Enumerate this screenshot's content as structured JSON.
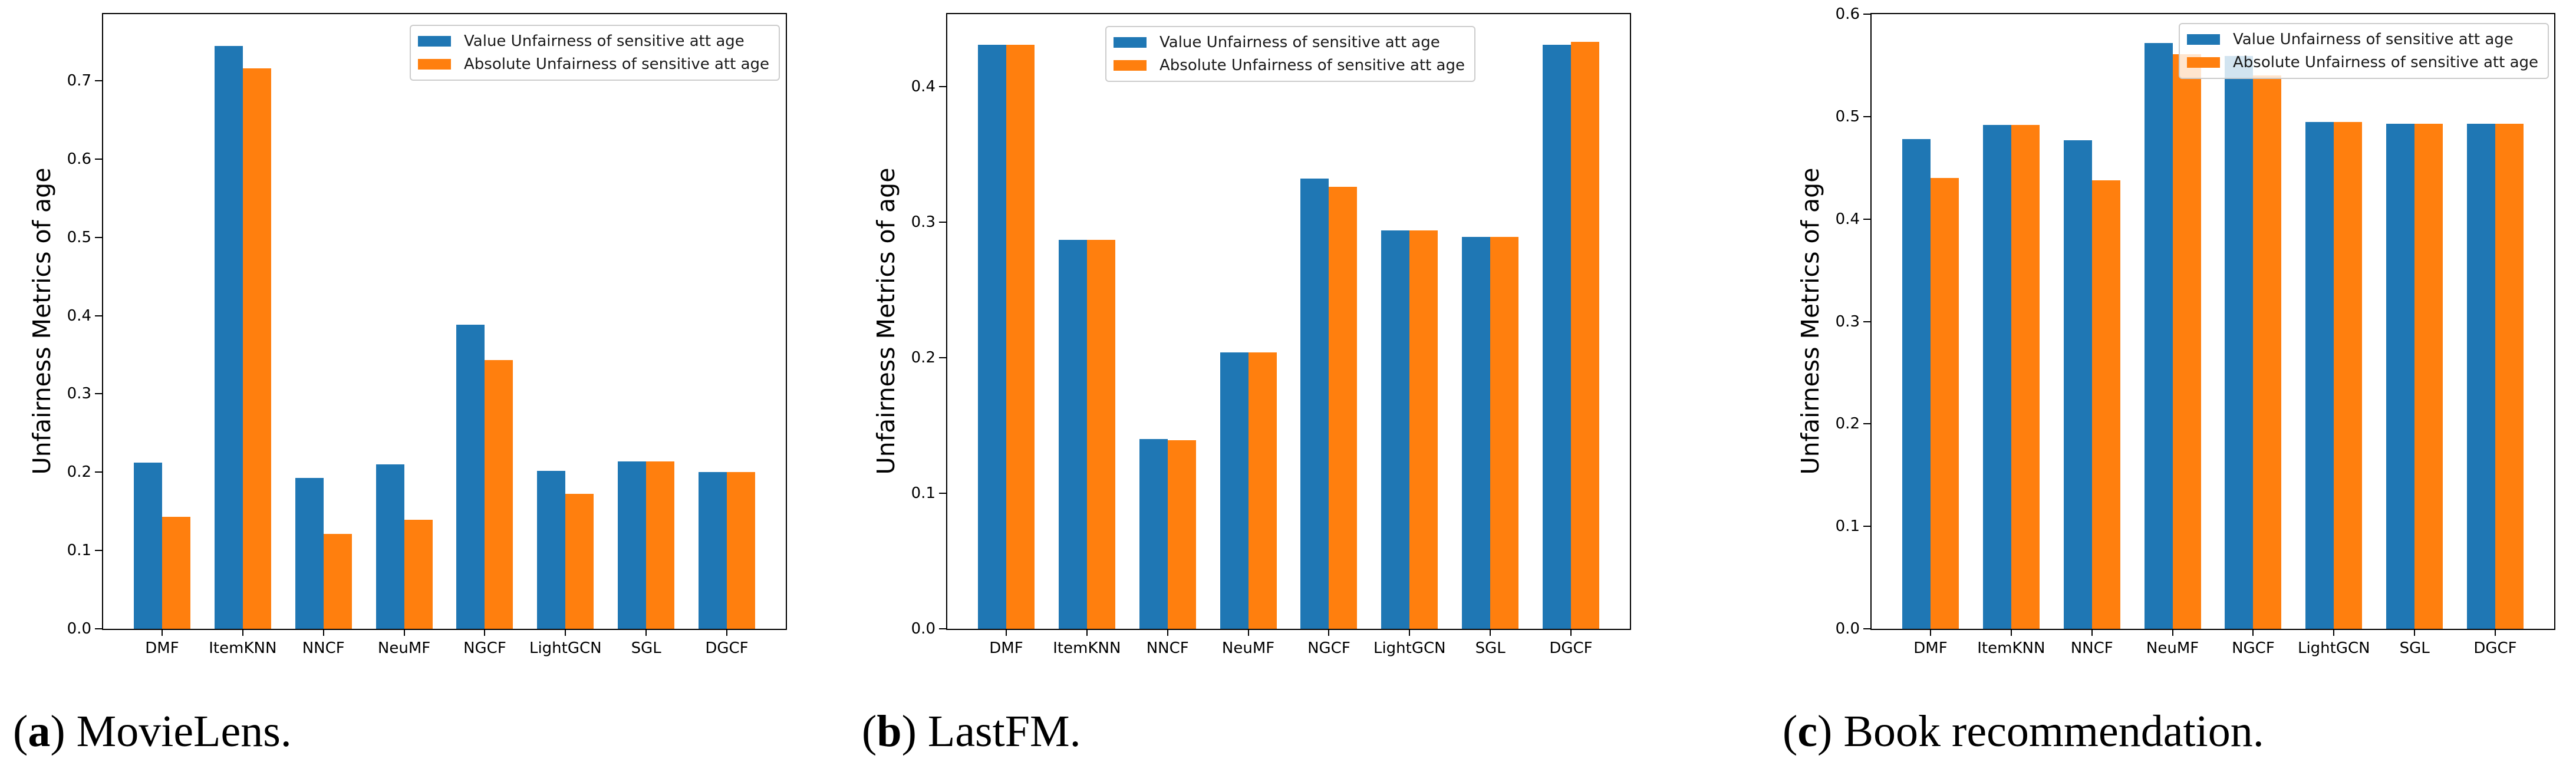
{
  "figure": {
    "background": "#ffffff",
    "axis_color": "#000000",
    "series_colors": {
      "value": "#1f77b4",
      "absolute": "#ff7f0e"
    }
  },
  "chart_data": [
    {
      "type": "bar",
      "caption": {
        "prefix": "(",
        "letter": "a",
        "suffix": ") MovieLens."
      },
      "ylabel": "Unfairness Metrics of age",
      "xlabel": "",
      "categories": [
        "DMF",
        "ItemKNN",
        "NNCF",
        "NeuMF",
        "NGCF",
        "LightGCN",
        "SGL",
        "DGCF"
      ],
      "series": [
        {
          "name": "Value Unfairness of sensitive att age",
          "color": "#1f77b4",
          "values": [
            0.212,
            0.744,
            0.193,
            0.21,
            0.388,
            0.202,
            0.214,
            0.2
          ]
        },
        {
          "name": "Absolute Unfairness of sensitive att age",
          "color": "#ff7f0e",
          "values": [
            0.143,
            0.716,
            0.121,
            0.139,
            0.343,
            0.172,
            0.214,
            0.2
          ]
        }
      ],
      "ylim": [
        0,
        0.785
      ],
      "yticks": [
        0.0,
        0.1,
        0.2,
        0.3,
        0.4,
        0.5,
        0.6,
        0.7
      ],
      "grid": false,
      "legend_position": "upper right"
    },
    {
      "type": "bar",
      "caption": {
        "prefix": "(",
        "letter": "b",
        "suffix": ") LastFM."
      },
      "ylabel": "Unfairness Metrics of age",
      "xlabel": "",
      "categories": [
        "DMF",
        "ItemKNN",
        "NNCF",
        "NeuMF",
        "NGCF",
        "LightGCN",
        "SGL",
        "DGCF"
      ],
      "series": [
        {
          "name": "Value Unfairness of sensitive att age",
          "color": "#1f77b4",
          "values": [
            0.431,
            0.287,
            0.14,
            0.204,
            0.332,
            0.294,
            0.289,
            0.431
          ]
        },
        {
          "name": "Absolute Unfairness of sensitive att age",
          "color": "#ff7f0e",
          "values": [
            0.431,
            0.287,
            0.139,
            0.204,
            0.326,
            0.294,
            0.289,
            0.433
          ]
        }
      ],
      "ylim": [
        0,
        0.4535
      ],
      "yticks": [
        0.0,
        0.1,
        0.2,
        0.3,
        0.4
      ],
      "grid": false,
      "legend_position": "upper center"
    },
    {
      "type": "bar",
      "caption": {
        "prefix": "(",
        "letter": "c",
        "suffix": ") Book recommendation."
      },
      "ylabel": "Unfairness Metrics of age",
      "xlabel": "",
      "categories": [
        "DMF",
        "ItemKNN",
        "NNCF",
        "NeuMF",
        "NGCF",
        "LightGCN",
        "SGL",
        "DGCF"
      ],
      "series": [
        {
          "name": "Value Unfairness of sensitive att age",
          "color": "#1f77b4",
          "values": [
            0.478,
            0.492,
            0.477,
            0.572,
            0.559,
            0.495,
            0.493,
            0.493
          ]
        },
        {
          "name": "Absolute Unfairness of sensitive att age",
          "color": "#ff7f0e",
          "values": [
            0.44,
            0.492,
            0.438,
            0.561,
            0.54,
            0.495,
            0.493,
            0.493
          ]
        }
      ],
      "ylim": [
        0,
        0.6
      ],
      "yticks": [
        0.0,
        0.1,
        0.2,
        0.3,
        0.4,
        0.5,
        0.6
      ],
      "grid": false,
      "legend_position": "upper right translucent"
    }
  ]
}
